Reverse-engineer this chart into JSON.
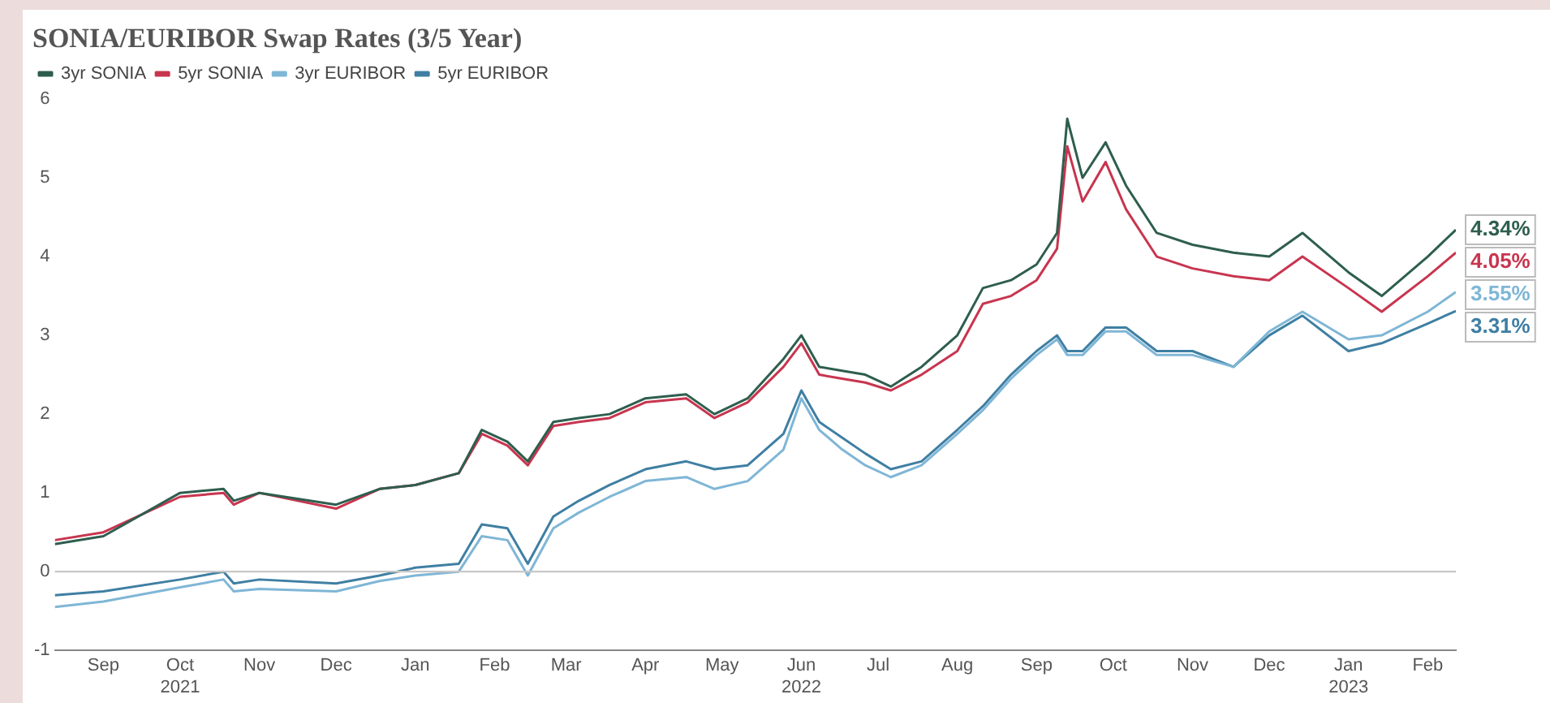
{
  "chart_data": {
    "type": "line",
    "title": "SONIA/EURIBOR Swap Rates (3/5 Year)",
    "x": [
      "2021-08-27",
      "2021-09-15",
      "2021-10-15",
      "2021-11-01",
      "2021-11-05",
      "2021-11-15",
      "2021-12-15",
      "2022-01-01",
      "2022-01-15",
      "2022-02-01",
      "2022-02-10",
      "2022-02-20",
      "2022-02-28",
      "2022-03-10",
      "2022-03-20",
      "2022-04-01",
      "2022-04-15",
      "2022-05-01",
      "2022-05-12",
      "2022-05-25",
      "2022-06-08",
      "2022-06-15",
      "2022-06-22",
      "2022-07-01",
      "2022-07-10",
      "2022-07-20",
      "2022-08-01",
      "2022-08-15",
      "2022-08-25",
      "2022-09-05",
      "2022-09-15",
      "2022-09-23",
      "2022-09-27",
      "2022-10-03",
      "2022-10-12",
      "2022-10-20",
      "2022-11-01",
      "2022-11-15",
      "2022-12-01",
      "2022-12-15",
      "2022-12-28",
      "2023-01-15",
      "2023-01-28",
      "2023-02-15",
      "2023-02-26"
    ],
    "series": [
      {
        "name": "3yr SONIA",
        "color": "#2e5e4e",
        "values": [
          0.35,
          0.45,
          1.0,
          1.05,
          0.9,
          1.0,
          0.85,
          1.05,
          1.1,
          1.25,
          1.8,
          1.65,
          1.4,
          1.9,
          1.95,
          2.0,
          2.2,
          2.25,
          2.0,
          2.2,
          2.7,
          3.0,
          2.6,
          2.55,
          2.5,
          2.35,
          2.6,
          3.0,
          3.6,
          3.7,
          3.9,
          4.3,
          5.75,
          5.0,
          5.45,
          4.9,
          4.3,
          4.15,
          4.05,
          4.0,
          4.3,
          3.8,
          3.5,
          4.0,
          4.34
        ],
        "value_labels": [
          null,
          null,
          null,
          null,
          null,
          null,
          null,
          null,
          null,
          null,
          null,
          null,
          null,
          null,
          null,
          null,
          null,
          null,
          null,
          null,
          null,
          null,
          null,
          null,
          null,
          null,
          null,
          null,
          null,
          null,
          null,
          null,
          null,
          null,
          null,
          null,
          null,
          null,
          null,
          null,
          null,
          null,
          null,
          null,
          "4.34%"
        ]
      },
      {
        "name": "5yr SONIA",
        "color": "#c8354f",
        "values": [
          0.4,
          0.5,
          0.95,
          1.0,
          0.85,
          1.0,
          0.8,
          1.05,
          1.1,
          1.25,
          1.75,
          1.6,
          1.35,
          1.85,
          1.9,
          1.95,
          2.15,
          2.2,
          1.95,
          2.15,
          2.6,
          2.9,
          2.5,
          2.45,
          2.4,
          2.3,
          2.5,
          2.8,
          3.4,
          3.5,
          3.7,
          4.1,
          5.4,
          4.7,
          5.2,
          4.6,
          4.0,
          3.85,
          3.75,
          3.7,
          4.0,
          3.6,
          3.3,
          3.75,
          4.05
        ],
        "value_labels": [
          null,
          null,
          null,
          null,
          null,
          null,
          null,
          null,
          null,
          null,
          null,
          null,
          null,
          null,
          null,
          null,
          null,
          null,
          null,
          null,
          null,
          null,
          null,
          null,
          null,
          null,
          null,
          null,
          null,
          null,
          null,
          null,
          null,
          null,
          null,
          null,
          null,
          null,
          null,
          null,
          null,
          null,
          null,
          null,
          "4.05%"
        ]
      },
      {
        "name": "3yr EURIBOR",
        "color": "#7fb6d6",
        "values": [
          -0.45,
          -0.38,
          -0.2,
          -0.1,
          -0.25,
          -0.22,
          -0.25,
          -0.12,
          -0.05,
          0.0,
          0.45,
          0.4,
          -0.05,
          0.55,
          0.75,
          0.95,
          1.15,
          1.2,
          1.05,
          1.15,
          1.55,
          2.2,
          1.8,
          1.55,
          1.35,
          1.2,
          1.35,
          1.75,
          2.05,
          2.45,
          2.75,
          2.95,
          2.75,
          2.75,
          3.05,
          3.05,
          2.75,
          2.75,
          2.6,
          3.05,
          3.3,
          2.95,
          3.0,
          3.3,
          3.55
        ],
        "value_labels": [
          null,
          null,
          null,
          null,
          null,
          null,
          null,
          null,
          null,
          null,
          null,
          null,
          null,
          null,
          null,
          null,
          null,
          null,
          null,
          null,
          null,
          null,
          null,
          null,
          null,
          null,
          null,
          null,
          null,
          null,
          null,
          null,
          null,
          null,
          null,
          null,
          null,
          null,
          null,
          null,
          null,
          null,
          null,
          null,
          "3.55%"
        ]
      },
      {
        "name": "5yr EURIBOR",
        "color": "#3f7fa3",
        "values": [
          -0.3,
          -0.25,
          -0.1,
          0.0,
          -0.15,
          -0.1,
          -0.15,
          -0.05,
          0.05,
          0.1,
          0.6,
          0.55,
          0.1,
          0.7,
          0.9,
          1.1,
          1.3,
          1.4,
          1.3,
          1.35,
          1.75,
          2.3,
          1.9,
          1.7,
          1.5,
          1.3,
          1.4,
          1.8,
          2.1,
          2.5,
          2.8,
          3.0,
          2.8,
          2.8,
          3.1,
          3.1,
          2.8,
          2.8,
          2.6,
          3.0,
          3.25,
          2.8,
          2.9,
          3.15,
          3.31
        ],
        "value_labels": [
          null,
          null,
          null,
          null,
          null,
          null,
          null,
          null,
          null,
          null,
          null,
          null,
          null,
          null,
          null,
          null,
          null,
          null,
          null,
          null,
          null,
          null,
          null,
          null,
          null,
          null,
          null,
          null,
          null,
          null,
          null,
          null,
          null,
          null,
          null,
          null,
          null,
          null,
          null,
          null,
          null,
          null,
          null,
          null,
          "3.31%"
        ]
      }
    ],
    "xlim": [
      "2021-08-27",
      "2023-02-26"
    ],
    "xticks": [
      {
        "value": "2021-09-15",
        "label": "Sep"
      },
      {
        "value": "2021-10-15",
        "label": "Oct\n2021"
      },
      {
        "value": "2021-11-15",
        "label": "Nov"
      },
      {
        "value": "2021-12-15",
        "label": "Dec"
      },
      {
        "value": "2022-01-15",
        "label": "Jan"
      },
      {
        "value": "2022-02-15",
        "label": "Feb"
      },
      {
        "value": "2022-03-15",
        "label": "Mar"
      },
      {
        "value": "2022-04-15",
        "label": "Apr"
      },
      {
        "value": "2022-05-15",
        "label": "May"
      },
      {
        "value": "2022-06-15",
        "label": "Jun\n2022"
      },
      {
        "value": "2022-07-15",
        "label": "Jul"
      },
      {
        "value": "2022-08-15",
        "label": "Aug"
      },
      {
        "value": "2022-09-15",
        "label": "Sep"
      },
      {
        "value": "2022-10-15",
        "label": "Oct"
      },
      {
        "value": "2022-11-15",
        "label": "Nov"
      },
      {
        "value": "2022-12-15",
        "label": "Dec"
      },
      {
        "value": "2023-01-15",
        "label": "Jan\n2023"
      },
      {
        "value": "2023-02-15",
        "label": "Feb"
      }
    ],
    "ylim": [
      -1,
      6
    ],
    "yticks": [
      -1,
      0,
      1,
      2,
      3,
      4,
      5,
      6
    ],
    "ref_lines": [
      {
        "axis": "y",
        "value": 0,
        "color": "#c8c8c8"
      }
    ],
    "grid": false,
    "legend": "top left",
    "marker": "none",
    "line_style": "solid"
  }
}
